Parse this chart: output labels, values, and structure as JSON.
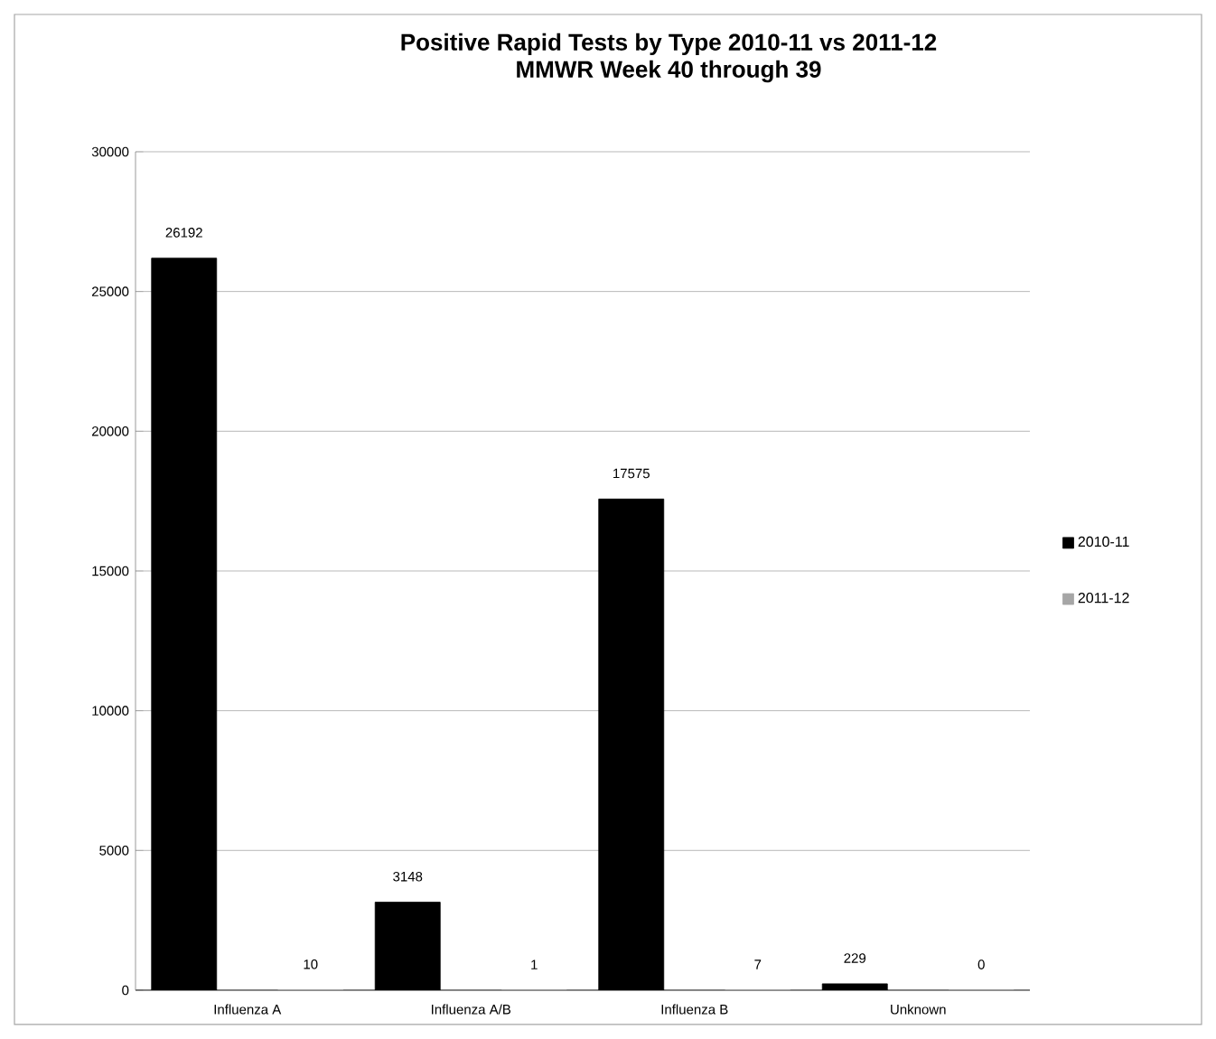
{
  "chart_data": {
    "type": "bar",
    "title": "Positive Rapid Tests by Type 2010-11 vs 2011-12",
    "subtitle": "MMWR Week 40 through 39",
    "categories": [
      "Influenza A",
      "Influenza A/B",
      "Influenza B",
      "Unknown"
    ],
    "series": [
      {
        "name": "2010-11",
        "color": "#000000",
        "values": [
          26192,
          3148,
          17575,
          229
        ]
      },
      {
        "name": "2011-12",
        "color": "#a6a6a6",
        "values": [
          10,
          1,
          7,
          0
        ]
      }
    ],
    "ylim": [
      0,
      30000
    ],
    "yticks": [
      0,
      5000,
      10000,
      15000,
      20000,
      25000,
      30000
    ],
    "grid": "y",
    "legend": "right",
    "data_labels": true
  }
}
